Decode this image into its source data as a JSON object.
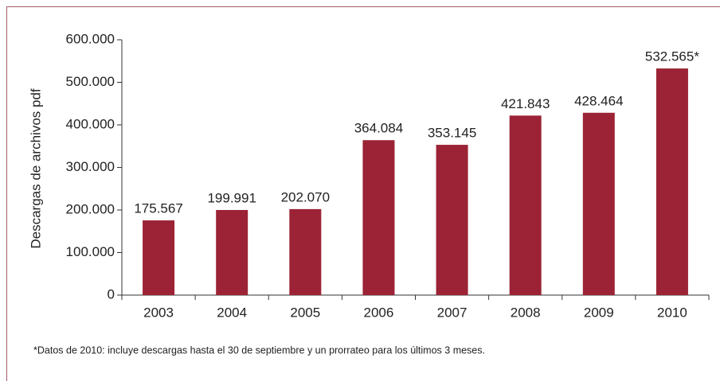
{
  "chart_data": {
    "type": "bar",
    "y_label": "Descargas de archivos pdf",
    "categories": [
      "2003",
      "2004",
      "2005",
      "2006",
      "2007",
      "2008",
      "2009",
      "2010"
    ],
    "values": [
      175567,
      199991,
      202070,
      364084,
      353145,
      421843,
      428464,
      532565
    ],
    "value_labels": [
      "175.567",
      "199.991",
      "202.070",
      "364.084",
      "353.145",
      "421.843",
      "428.464",
      "532.565*"
    ],
    "color": "#9b2335",
    "ylim": [
      0,
      600000
    ],
    "yticks": [
      0,
      {
        "value": 100000,
        "label": "100.000"
      },
      {
        "value": 200000,
        "label": "200.000"
      },
      {
        "value": 300000,
        "label": "300.000"
      },
      {
        "value": 400000,
        "label": "400.000"
      },
      {
        "value": 500000,
        "label": "500.000"
      },
      {
        "value": 600000,
        "label": "600.000"
      }
    ],
    "note": "*Datos de 2010: incluye descargas hasta el 30 de septiembre y un prorrateo para los últimos 3 meses."
  }
}
